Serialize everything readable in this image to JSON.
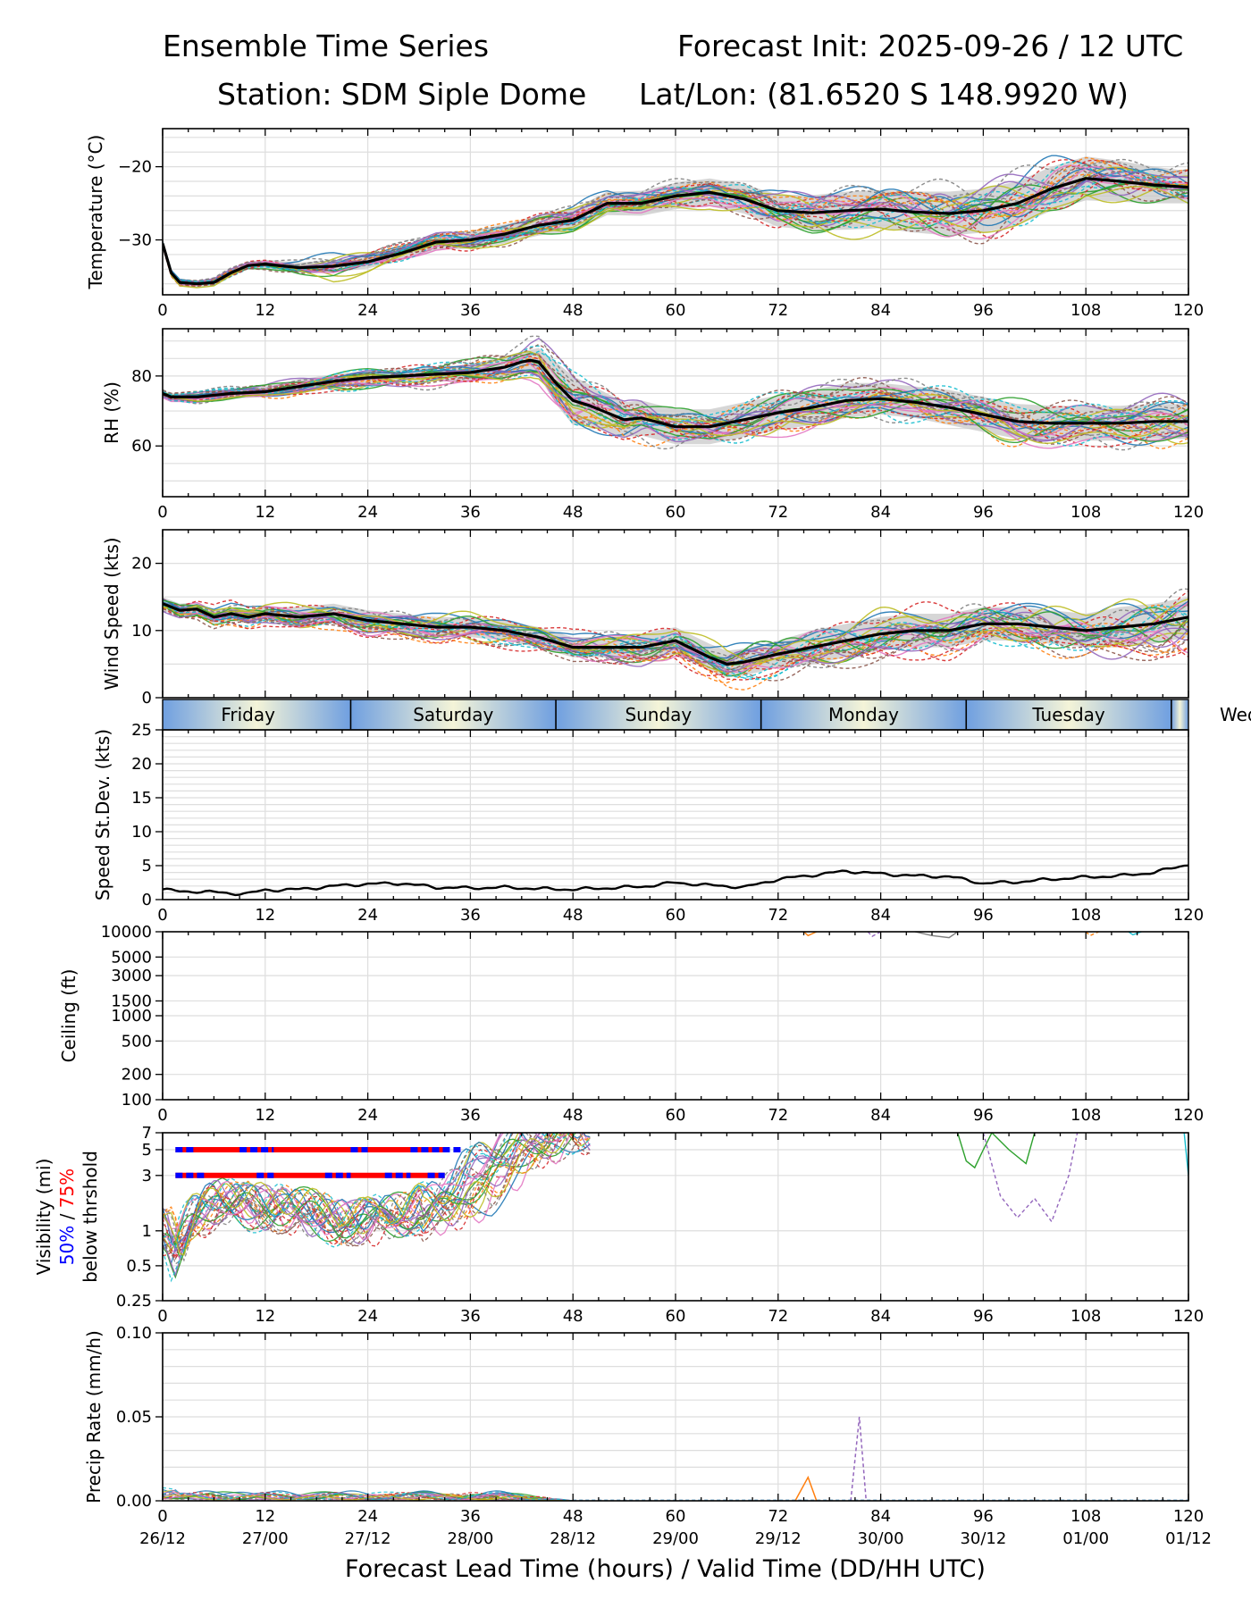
{
  "header": {
    "title_left": "Ensemble Time Series",
    "title_right": "Forecast Init: 2025-09-26 / 12 UTC",
    "station": "Station: SDM  Siple Dome",
    "latlon": "Lat/Lon: (81.6520 S 148.9920 W)"
  },
  "x_axis": {
    "title": "Forecast Lead Time (hours) / Valid Time (DD/HH UTC)",
    "ticks": [
      0,
      12,
      24,
      36,
      48,
      60,
      72,
      84,
      96,
      108,
      120
    ],
    "valid_time_labels": [
      "26/12",
      "27/00",
      "27/12",
      "28/00",
      "28/12",
      "29/00",
      "29/12",
      "30/00",
      "30/12",
      "01/00",
      "01/12"
    ],
    "xlim": [
      0,
      120
    ]
  },
  "day_band": {
    "days": [
      "Friday",
      "Saturday",
      "Sunday",
      "Monday",
      "Tuesday",
      "Wed"
    ],
    "boundaries_hours": [
      22,
      46,
      70,
      94,
      118
    ]
  },
  "colors": {
    "mean": "#000000",
    "spread": "#c8c8c8",
    "members": [
      "#1f77b4",
      "#ff7f0e",
      "#2ca02c",
      "#d62728",
      "#9467bd",
      "#8c564b",
      "#e377c2",
      "#7f7f7f",
      "#bcbd22",
      "#17becf"
    ],
    "thr50": "#0000ff",
    "thr75": "#ff0000",
    "band_edge": "#6f9fe0",
    "band_mid": "#f4f4d8"
  },
  "chart_data": [
    {
      "type": "line",
      "ylabel": "Temperature (°C)",
      "ylim": [
        -37.5,
        -14.8
      ],
      "yticks": [
        -20,
        -30
      ],
      "ytick_labels": [
        "−20",
        "−30"
      ],
      "mean": {
        "x": [
          0,
          1,
          2,
          4,
          6,
          8,
          10,
          12,
          16,
          20,
          24,
          28,
          32,
          36,
          40,
          44,
          48,
          52,
          56,
          60,
          64,
          68,
          72,
          76,
          80,
          84,
          88,
          92,
          96,
          100,
          104,
          108,
          112,
          116,
          120
        ],
        "y": [
          -30.5,
          -34.5,
          -35.8,
          -36.0,
          -35.8,
          -34.5,
          -33.5,
          -33.3,
          -33.8,
          -33.6,
          -33.0,
          -31.8,
          -30.3,
          -30.0,
          -29.2,
          -28.0,
          -27.3,
          -25.0,
          -25.0,
          -24.0,
          -23.5,
          -24.4,
          -26.0,
          -26.3,
          -26.0,
          -25.8,
          -26.2,
          -26.4,
          -26.0,
          -25.0,
          -23.0,
          -21.6,
          -22.0,
          -22.5,
          -22.8
        ]
      },
      "spread_width": [
        0.3,
        0.4,
        0.5,
        0.5,
        0.5,
        0.5,
        0.5,
        0.6,
        0.7,
        0.8,
        0.9,
        1.0,
        1.1,
        1.2,
        1.3,
        1.4,
        1.5,
        1.6,
        1.7,
        1.8,
        1.9,
        2.0,
        2.2,
        2.4,
        2.6,
        2.6,
        2.8,
        3.0,
        3.0,
        3.0,
        3.0,
        3.0,
        2.8,
        2.5,
        2.2
      ],
      "member_count": 30,
      "member_spread": [
        0.4,
        0.5,
        0.6,
        0.6,
        0.6,
        0.6,
        0.6,
        0.8,
        1.2,
        2.0,
        1.6,
        1.4,
        1.4,
        1.6,
        1.8,
        2.0,
        2.0,
        2.0,
        2.2,
        2.2,
        2.3,
        2.5,
        3.0,
        3.5,
        3.6,
        3.8,
        4.0,
        4.6,
        4.8,
        4.6,
        4.2,
        3.8,
        3.4,
        3.2,
        3.0
      ]
    },
    {
      "type": "line",
      "ylabel": "RH (%)",
      "ylim": [
        45.5,
        93.5
      ],
      "yticks": [
        80,
        60
      ],
      "ytick_labels": [
        "80",
        "60"
      ],
      "mean": {
        "x": [
          0,
          1,
          2,
          4,
          8,
          12,
          16,
          20,
          24,
          28,
          32,
          36,
          40,
          42,
          43,
          44,
          46,
          48,
          50,
          54,
          56,
          60,
          64,
          68,
          72,
          76,
          80,
          84,
          88,
          92,
          96,
          100,
          104,
          108,
          112,
          116,
          120
        ],
        "y": [
          75.0,
          74.0,
          74.0,
          74.0,
          75.0,
          75.5,
          77.0,
          78.5,
          79.5,
          80.0,
          80.5,
          81.0,
          82.5,
          84.0,
          84.5,
          84.0,
          78.0,
          73.0,
          71.5,
          67.5,
          68.0,
          65.5,
          65.5,
          67.5,
          69.5,
          71.0,
          73.0,
          73.5,
          72.5,
          71.0,
          69.0,
          67.0,
          66.5,
          66.5,
          66.5,
          67.0,
          67.0
        ]
      },
      "spread_width": [
        1,
        1,
        1,
        1.5,
        1.5,
        1.5,
        2,
        2,
        2,
        2,
        2,
        2.5,
        3,
        3,
        3,
        4,
        6,
        7,
        6,
        5,
        5,
        5,
        5,
        5,
        5,
        5,
        5,
        4.5,
        4.5,
        5,
        5,
        5,
        5,
        5,
        5,
        5,
        5
      ],
      "member_count": 30,
      "member_spread": [
        1.2,
        1.2,
        1.2,
        1.8,
        2,
        2.2,
        2.6,
        3,
        3.6,
        4,
        4,
        4,
        4.5,
        5,
        6,
        7,
        8,
        9,
        8,
        7,
        7,
        6.5,
        6.5,
        6.5,
        6.5,
        6.5,
        6.5,
        6,
        6,
        6.5,
        7,
        7,
        7,
        7,
        7,
        7.5,
        8
      ]
    },
    {
      "type": "line",
      "ylabel": "Wind Speed (kts)",
      "ylim": [
        0,
        25
      ],
      "yticks": [
        0,
        10,
        20
      ],
      "ytick_labels": [
        "0",
        "10",
        "20"
      ],
      "mean": {
        "x": [
          0,
          2,
          4,
          6,
          8,
          10,
          12,
          16,
          20,
          24,
          28,
          32,
          36,
          40,
          44,
          48,
          52,
          56,
          60,
          64,
          66,
          68,
          72,
          76,
          80,
          84,
          88,
          92,
          96,
          100,
          104,
          108,
          112,
          116,
          120
        ],
        "y": [
          14.0,
          13.0,
          13.2,
          12.0,
          12.5,
          12.0,
          12.5,
          12.0,
          12.5,
          11.5,
          11.0,
          10.5,
          10.5,
          10.0,
          9.0,
          7.5,
          7.5,
          7.5,
          8.5,
          6.0,
          5.0,
          5.3,
          6.5,
          7.5,
          8.5,
          9.5,
          10.0,
          10.0,
          11.0,
          11.0,
          10.5,
          10.0,
          10.5,
          11.0,
          12.0
        ]
      },
      "spread_width": [
        1,
        1,
        1,
        1,
        1,
        1,
        1,
        1.5,
        1.5,
        1.5,
        1.5,
        1.5,
        1.5,
        1.5,
        1.5,
        1.5,
        1.5,
        2,
        2,
        2,
        2,
        2,
        2,
        2.5,
        2.5,
        2.5,
        2.5,
        2.5,
        2.5,
        2.5,
        2.5,
        2.5,
        3,
        3,
        3
      ],
      "member_count": 30,
      "member_spread": [
        1.2,
        1.4,
        1.6,
        1.8,
        2,
        2,
        2,
        2.2,
        2.5,
        2.5,
        2.5,
        2.5,
        2.5,
        2.5,
        2.5,
        2.5,
        2.8,
        3,
        3,
        3.2,
        3.5,
        3.8,
        4,
        4,
        4,
        4,
        4,
        4,
        4,
        4,
        4.2,
        4.5,
        5,
        5.5,
        6
      ]
    },
    {
      "type": "line",
      "ylabel": "Speed St.Dev. (kts)",
      "ylim": [
        0,
        25
      ],
      "yticks": [
        0,
        5,
        10,
        15,
        20,
        25
      ],
      "ytick_labels": [
        "0",
        "5",
        "10",
        "15",
        "20",
        "25"
      ],
      "series": {
        "x": [
          0,
          2,
          4,
          6,
          8,
          10,
          12,
          16,
          20,
          24,
          28,
          32,
          36,
          40,
          44,
          48,
          52,
          56,
          60,
          64,
          66,
          68,
          72,
          76,
          80,
          84,
          88,
          92,
          96,
          100,
          104,
          108,
          112,
          116,
          120
        ],
        "y": [
          1.5,
          1.2,
          1.2,
          1.1,
          0.9,
          0.9,
          1.4,
          1.5,
          2.0,
          2.3,
          2.4,
          1.8,
          1.7,
          1.8,
          1.6,
          1.5,
          1.7,
          1.9,
          2.5,
          2.1,
          2.0,
          1.8,
          3.0,
          3.6,
          4.2,
          3.8,
          3.5,
          3.4,
          2.4,
          2.6,
          3.0,
          3.3,
          3.5,
          4.0,
          5.2
        ]
      }
    },
    {
      "type": "line",
      "ylabel": "Ceiling (ft)",
      "ylim": [
        100,
        10000
      ],
      "scale": "log",
      "yticks": [
        100,
        200,
        500,
        1000,
        1500,
        3000,
        5000,
        10000
      ],
      "ytick_labels": [
        "100",
        "200",
        "500",
        "1000",
        "1500",
        "3000",
        "5000",
        "10000"
      ],
      "fragments": [
        {
          "x": [
            75.0,
            75.5,
            76.5
          ],
          "y": [
            10000,
            9000,
            10000
          ]
        },
        {
          "x": [
            82.5,
            83.0,
            84.0
          ],
          "y": [
            10000,
            8800,
            10000
          ]
        },
        {
          "x": [
            88.0,
            90.0,
            92.0,
            93.0
          ],
          "y": [
            10000,
            9000,
            8500,
            10000
          ]
        },
        {
          "x": [
            108.0,
            108.5,
            109.5
          ],
          "y": [
            10000,
            9000,
            10000
          ]
        },
        {
          "x": [
            113.0,
            113.5,
            114.5
          ],
          "y": [
            10000,
            9200,
            10000
          ]
        }
      ]
    },
    {
      "type": "line",
      "ylabel_line1": "Visibility (mi)",
      "ylabel_line2a": "50%",
      "ylabel_line2sep": " / ",
      "ylabel_line2b": "75%",
      "ylabel_line3": "below thrshold",
      "ylim": [
        0.25,
        7
      ],
      "scale": "log",
      "yticks": [
        0.25,
        0.5,
        1,
        3,
        5,
        7
      ],
      "ytick_labels": [
        "0.25",
        "0.5",
        "1",
        "3",
        "5",
        "7"
      ],
      "threshold_bars": [
        {
          "level": 5,
          "p75": [
            [
              1.5,
              33
            ]
          ],
          "p50": [
            [
              1.5,
              4
            ],
            [
              9,
              13
            ],
            [
              22,
              24
            ],
            [
              29,
              35
            ]
          ]
        },
        {
          "level": 3,
          "p75": [
            [
              1.5,
              33
            ]
          ],
          "p50": [
            [
              1.5,
              5
            ],
            [
              11,
              13
            ],
            [
              19,
              22
            ],
            [
              26,
              29
            ],
            [
              31,
              33
            ]
          ]
        }
      ],
      "member_base": {
        "x": [
          0,
          1,
          3,
          6,
          10,
          15,
          20,
          24,
          28,
          32,
          35,
          38,
          42,
          46
        ],
        "y": [
          1.0,
          0.6,
          1.2,
          1.8,
          1.6,
          1.5,
          1.2,
          1.2,
          1.4,
          1.8,
          3.0,
          4.5,
          6.5,
          7.5
        ]
      },
      "member_count": 30,
      "late_fragments": [
        {
          "x": [
            93.0,
            94.0,
            95.0,
            96.0,
            97.0
          ],
          "y": [
            7.0,
            4.0,
            3.5,
            5.0,
            7.0
          ]
        },
        {
          "x": [
            96.0,
            98.0,
            100.0,
            102.0,
            104.0,
            106.0,
            107.0
          ],
          "y": [
            7.0,
            2.0,
            1.3,
            1.9,
            1.2,
            3.0,
            7.0
          ]
        },
        {
          "x": [
            97.0,
            99.0,
            101.0,
            102.0
          ],
          "y": [
            7.0,
            5.0,
            3.8,
            7.0
          ]
        },
        {
          "x": [
            119.5,
            120.0
          ],
          "y": [
            7.0,
            3.0
          ]
        }
      ]
    },
    {
      "type": "line",
      "ylabel": "Precip Rate (mm/h)",
      "ylim": [
        0,
        0.1
      ],
      "yticks": [
        0,
        0.05,
        0.1
      ],
      "ytick_labels": [
        "0.00",
        "0.05",
        "0.10"
      ],
      "peaks": [
        {
          "x": [
            74.0,
            75.5,
            76.5
          ],
          "y": [
            0.0,
            0.014,
            0.0
          ]
        },
        {
          "x": [
            80.5,
            81.5,
            82.3
          ],
          "y": [
            0.0,
            0.05,
            0.0
          ]
        }
      ]
    }
  ]
}
